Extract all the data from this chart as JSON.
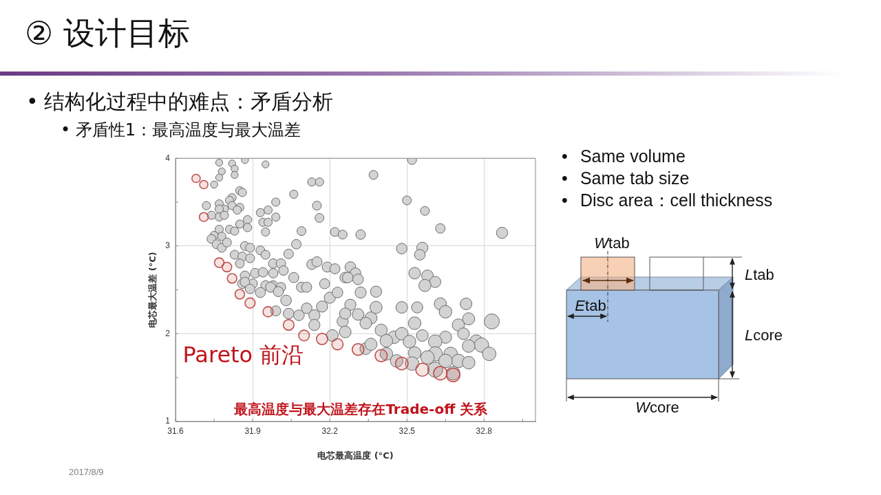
{
  "chart_data": {
    "type": "bubble",
    "title": "② 设计目标",
    "subtitle": "• 结构化过程中的难点：矛盾分析",
    "xlabel": "电芯最高温度 (°C)",
    "ylabel": "电芯最大温差 (°C)",
    "xlim": [
      31.6,
      33
    ],
    "ylim": [
      1,
      4
    ],
    "xticks": [
      31.6,
      {
        "value": 31.75,
        "label": null
      },
      31.9,
      {
        "value": 32.05,
        "label": null
      },
      32.2,
      {
        "value": 32.35,
        "label": null
      },
      32.5,
      {
        "value": 32.65,
        "label": null
      },
      32.8,
      {
        "value": 32.95,
        "label": null
      }
    ],
    "yticks": [
      1,
      {
        "value": 1.5,
        "label": null
      },
      2,
      {
        "value": 2.5,
        "label": null
      },
      3,
      {
        "value": 3.5,
        "label": null
      },
      4
    ],
    "grid": true,
    "marker": "circle",
    "series": [
      {
        "color": "#d3d3d3",
        "x": [
          31.77,
          31.82,
          31.83,
          31.83,
          31.87,
          31.95,
          31.78,
          31.77,
          31.75,
          31.85,
          31.86,
          31.82,
          31.81,
          31.72,
          31.77,
          31.79,
          31.77,
          31.82,
          31.85,
          31.84,
          31.77,
          31.79,
          31.74,
          31.85,
          31.88,
          31.88,
          31.93,
          31.96,
          31.99,
          31.99,
          31.94,
          31.96,
          31.95,
          32.06,
          32.13,
          32.16,
          32.15,
          32.16,
          32.09,
          32.22,
          32.25,
          31.75,
          31.77,
          31.81,
          31.83,
          31.78,
          32.07,
          32.04,
          31.74,
          31.76,
          31.78,
          31.8,
          31.87,
          31.89,
          31.93,
          31.95,
          31.83,
          31.86,
          31.89,
          31.85,
          31.98,
          32.01,
          32.02,
          32.13,
          32.15,
          32.19,
          32.22,
          32.06,
          32.09,
          32.11,
          32.18,
          32.28,
          32.26,
          31.87,
          31.91,
          31.94,
          31.98,
          31.86,
          31.9,
          31.95,
          31.98,
          32.01,
          32.52,
          32.37,
          32.5,
          32.57,
          32.63,
          32.87,
          32.32,
          32.48,
          32.56,
          32.55,
          32.3,
          32.27,
          32.31,
          32.53,
          32.58,
          32.61,
          32.57,
          32.38,
          32.48,
          32.54,
          32.63,
          32.65,
          32.73,
          32.74,
          32.83,
          32.53,
          32.56,
          32.7,
          32.72,
          32.65,
          32.61,
          32.77,
          32.79,
          32.74,
          32.82,
          32.28,
          32.31,
          32.36,
          32.38,
          32.45,
          32.48,
          32.51,
          32.34,
          32.42,
          32.46,
          32.53,
          32.52,
          32.61,
          32.67,
          32.7,
          32.61,
          32.68,
          32.74,
          31.87,
          31.89,
          31.93,
          31.97,
          32.0,
          32.03,
          31.99,
          32.04,
          32.08,
          32.11,
          32.14,
          32.17,
          32.2,
          32.14,
          32.25,
          32.26,
          32.21,
          32.34,
          32.4,
          32.42,
          32.58,
          32.65,
          32.36,
          32.26,
          32.32,
          32.23
        ],
        "values": [
          3.95,
          3.94,
          3.88,
          3.81,
          3.98,
          3.93,
          3.85,
          3.78,
          3.7,
          3.63,
          3.61,
          3.55,
          3.52,
          3.46,
          3.48,
          3.42,
          3.42,
          3.46,
          3.44,
          3.41,
          3.33,
          3.35,
          3.35,
          3.25,
          3.3,
          3.21,
          3.38,
          3.41,
          3.5,
          3.33,
          3.27,
          3.27,
          3.16,
          3.59,
          3.73,
          3.73,
          3.46,
          3.32,
          3.17,
          3.16,
          3.13,
          3.12,
          3.19,
          3.19,
          3.17,
          3.11,
          3.02,
          2.91,
          3.08,
          3.02,
          2.98,
          3.04,
          3.0,
          2.98,
          2.95,
          2.9,
          2.9,
          2.88,
          2.86,
          2.8,
          2.8,
          2.8,
          2.72,
          2.79,
          2.82,
          2.76,
          2.74,
          2.64,
          2.53,
          2.53,
          2.57,
          2.76,
          2.64,
          2.66,
          2.69,
          2.7,
          2.69,
          2.57,
          2.57,
          2.55,
          2.55,
          2.53,
          3.98,
          3.81,
          3.52,
          3.4,
          3.2,
          3.15,
          3.13,
          2.97,
          2.98,
          2.9,
          2.69,
          2.64,
          2.62,
          2.69,
          2.66,
          2.59,
          2.55,
          2.48,
          2.3,
          2.3,
          2.34,
          2.25,
          2.34,
          2.17,
          2.14,
          2.12,
          1.98,
          2.1,
          2.0,
          1.96,
          1.91,
          1.91,
          1.87,
          1.86,
          1.77,
          2.33,
          2.22,
          2.18,
          2.3,
          1.96,
          2.0,
          1.91,
          1.83,
          1.77,
          1.69,
          1.78,
          1.66,
          1.77,
          1.77,
          1.69,
          1.59,
          1.55,
          1.67,
          2.59,
          2.51,
          2.47,
          2.53,
          2.48,
          2.38,
          2.26,
          2.23,
          2.21,
          2.29,
          2.21,
          2.31,
          2.41,
          2.1,
          2.14,
          2.02,
          1.98,
          2.12,
          2.04,
          1.92,
          1.73,
          1.69,
          1.88,
          2.23,
          2.47,
          2.47
        ],
        "sizes": [
          0.22,
          0.22,
          0.22,
          0.22,
          0.22,
          0.22,
          0.22,
          0.22,
          0.22,
          0.3,
          0.3,
          0.3,
          0.3,
          0.3,
          0.3,
          0.3,
          0.3,
          0.3,
          0.3,
          0.3,
          0.3,
          0.3,
          0.3,
          0.3,
          0.3,
          0.3,
          0.3,
          0.3,
          0.3,
          0.3,
          0.3,
          0.3,
          0.3,
          0.3,
          0.3,
          0.3,
          0.35,
          0.35,
          0.35,
          0.35,
          0.35,
          0.3,
          0.3,
          0.3,
          0.3,
          0.3,
          0.4,
          0.4,
          0.35,
          0.35,
          0.35,
          0.35,
          0.35,
          0.35,
          0.35,
          0.35,
          0.35,
          0.35,
          0.35,
          0.35,
          0.4,
          0.4,
          0.4,
          0.45,
          0.45,
          0.45,
          0.45,
          0.45,
          0.45,
          0.45,
          0.45,
          0.5,
          0.5,
          0.4,
          0.4,
          0.4,
          0.4,
          0.4,
          0.4,
          0.4,
          0.4,
          0.4,
          0.35,
          0.35,
          0.35,
          0.35,
          0.4,
          0.55,
          0.4,
          0.5,
          0.55,
          0.5,
          0.5,
          0.5,
          0.5,
          0.6,
          0.6,
          0.55,
          0.65,
          0.55,
          0.6,
          0.55,
          0.65,
          0.7,
          0.6,
          0.65,
          1,
          0.7,
          0.6,
          0.65,
          0.6,
          0.65,
          0.8,
          0.8,
          0.9,
          0.7,
          0.8,
          0.55,
          0.6,
          0.65,
          0.65,
          0.7,
          0.7,
          0.7,
          0.6,
          0.7,
          0.7,
          0.7,
          0.8,
          0.9,
          0.8,
          0.8,
          1,
          0.8,
          0.7,
          0.4,
          0.4,
          0.45,
          0.45,
          0.45,
          0.5,
          0.45,
          0.5,
          0.5,
          0.5,
          0.55,
          0.55,
          0.55,
          0.55,
          0.55,
          0.6,
          0.6,
          0.6,
          0.65,
          0.7,
          0.8,
          0.8,
          0.65,
          0.55,
          0.55,
          0.5
        ]
      },
      {
        "color": "#c0504d",
        "x": [
          31.68,
          31.71,
          31.71,
          31.77,
          31.8,
          31.82,
          31.85,
          31.89,
          31.96,
          32.04,
          32.1,
          32.17,
          32.23,
          32.31,
          32.4,
          32.48,
          32.56,
          32.63,
          32.68
        ],
        "values": [
          3.77,
          3.7,
          3.33,
          2.81,
          2.76,
          2.63,
          2.45,
          2.35,
          2.25,
          2.1,
          1.98,
          1.94,
          1.88,
          1.82,
          1.75,
          1.66,
          1.59,
          1.55,
          1.53
        ],
        "sizes": [
          0.3,
          0.3,
          0.35,
          0.4,
          0.4,
          0.4,
          0.4,
          0.45,
          0.45,
          0.5,
          0.5,
          0.55,
          0.55,
          0.6,
          0.65,
          0.7,
          0.75,
          0.8,
          0.8
        ]
      }
    ],
    "annotations": [
      "• 矛盾性1：最高温度与最大温差",
      "Pareto 前沿",
      "最高温度与最大温差存在Trade-off 关系",
      "• Same volume",
      "• Same tab size",
      "• Disc area：cell thickness",
      "Wtab",
      "Ltab",
      "Etab",
      "Lcore",
      "Wcore",
      "2017/8/9"
    ]
  }
}
